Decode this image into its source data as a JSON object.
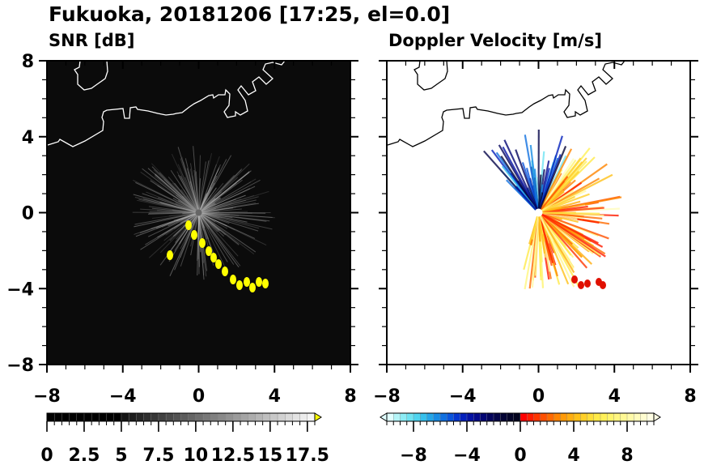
{
  "title": "Fukuoka, 20181206 [17:25, el=0.0]",
  "chart_data": [
    {
      "type": "heatmap",
      "title": "SNR [dB]",
      "xlim": [
        -8,
        8
      ],
      "ylim": [
        -8,
        8
      ],
      "xticks": [
        "−8",
        "−4",
        "0",
        "4",
        "8"
      ],
      "yticks": [
        "8",
        "4",
        "0",
        "−4",
        "−8"
      ],
      "colorbar": {
        "min": 0,
        "max": 18,
        "step": 0.5,
        "ticks": [
          "0",
          "2.5",
          "5",
          "7.5",
          "10",
          "12.5",
          "15",
          "17.5"
        ],
        "tick_values": [
          0,
          2.5,
          5,
          7.5,
          10,
          12.5,
          15,
          17.5
        ],
        "over_color": "#ffff00",
        "extend": "max"
      }
    },
    {
      "type": "heatmap",
      "title": "Doppler Velocity [m/s]",
      "xlim": [
        -8,
        8
      ],
      "ylim": [
        -8,
        8
      ],
      "xticks": [
        "−8",
        "−4",
        "0",
        "4",
        "8"
      ],
      "colorbar": {
        "min": -10,
        "max": 10,
        "step": 0.5,
        "ticks": [
          "−8",
          "−4",
          "0",
          "4",
          "8"
        ],
        "tick_values": [
          -8,
          -4,
          0,
          4,
          8
        ],
        "extend": "both"
      }
    }
  ]
}
